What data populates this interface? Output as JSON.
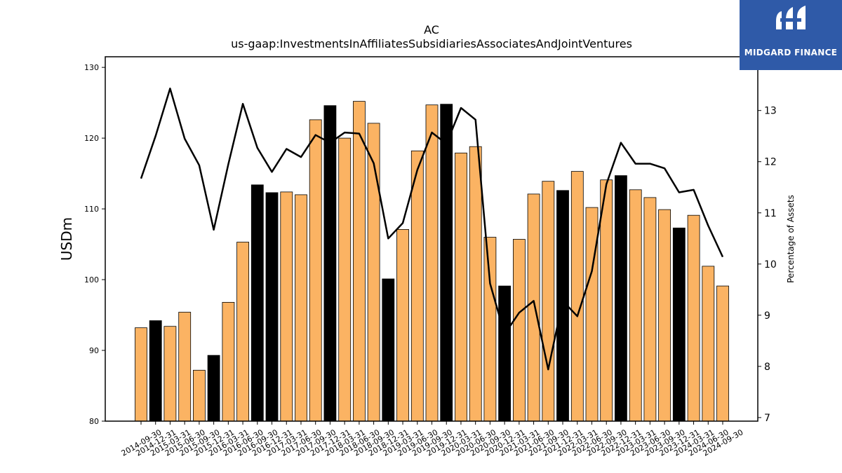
{
  "logo": {
    "text": "MIDGARD FINANCE"
  },
  "colors": {
    "bar_default": "#fbb363",
    "bar_highlight": "#000000",
    "line": "#000000",
    "logo_bg": "#2f5aa8"
  },
  "chart_data": {
    "type": "bar",
    "title": "AC",
    "subtitle": "us-gaap:InvestmentsInAffiliatesSubsidiariesAssociatesAndJointVentures",
    "ylabel": "USDm",
    "y2label": "Percentage of Assets",
    "ylim": [
      80,
      131.5
    ],
    "y2lim": [
      6.93,
      14.05
    ],
    "yticks": [
      80,
      90,
      100,
      110,
      120,
      130
    ],
    "y2ticks": [
      7,
      8,
      9,
      10,
      11,
      12,
      13
    ],
    "grid": false,
    "categories": [
      "2014-09-30",
      "2014-12-31",
      "2015-03-31",
      "2015-06-30",
      "2015-09-30",
      "2015-12-31",
      "2016-03-31",
      "2016-06-30",
      "2016-09-30",
      "2016-12-31",
      "2017-03-31",
      "2017-06-30",
      "2017-09-30",
      "2017-12-31",
      "2018-03-31",
      "2018-06-30",
      "2018-09-30",
      "2018-12-31",
      "2019-03-31",
      "2019-06-30",
      "2019-09-30",
      "2019-12-31",
      "2020-03-31",
      "2020-06-30",
      "2020-09-30",
      "2020-12-31",
      "2021-03-31",
      "2021-06-30",
      "2021-09-30",
      "2021-12-31",
      "2022-03-31",
      "2022-06-30",
      "2022-09-30",
      "2022-12-31",
      "2023-03-31",
      "2023-06-30",
      "2023-09-30",
      "2023-12-31",
      "2024-03-31",
      "2024-06-30",
      "2024-09-30"
    ],
    "series": [
      {
        "kind": "bar",
        "values": [
          93.2,
          94.2,
          93.4,
          95.4,
          87.2,
          89.3,
          96.8,
          105.3,
          113.4,
          112.3,
          112.4,
          112.0,
          122.6,
          124.6,
          120.0,
          125.2,
          122.1,
          100.1,
          107.1,
          118.2,
          124.7,
          124.8,
          117.9,
          118.8,
          106.0,
          99.1,
          105.7,
          112.1,
          113.9,
          112.6,
          115.3,
          110.2,
          114.1,
          114.7,
          112.7,
          111.6,
          109.9,
          107.3,
          109.1,
          101.9,
          99.1
        ],
        "highlight": [
          false,
          true,
          false,
          false,
          false,
          true,
          false,
          false,
          true,
          true,
          false,
          false,
          false,
          true,
          false,
          false,
          false,
          true,
          false,
          false,
          false,
          true,
          false,
          false,
          false,
          true,
          false,
          false,
          false,
          true,
          false,
          false,
          false,
          true,
          false,
          false,
          false,
          true,
          false,
          false,
          false
        ]
      },
      {
        "kind": "line",
        "axis": "right",
        "values": [
          11.67,
          12.5,
          13.43,
          12.45,
          11.93,
          10.67,
          11.95,
          13.13,
          12.27,
          11.8,
          12.25,
          12.09,
          12.52,
          12.37,
          12.57,
          12.55,
          11.97,
          10.5,
          10.8,
          11.84,
          12.57,
          12.35,
          13.05,
          12.82,
          9.62,
          8.63,
          9.05,
          9.28,
          7.94,
          9.28,
          8.98,
          9.86,
          11.56,
          12.37,
          11.96,
          11.96,
          11.87,
          11.4,
          11.45,
          10.75,
          10.14
        ]
      }
    ]
  }
}
